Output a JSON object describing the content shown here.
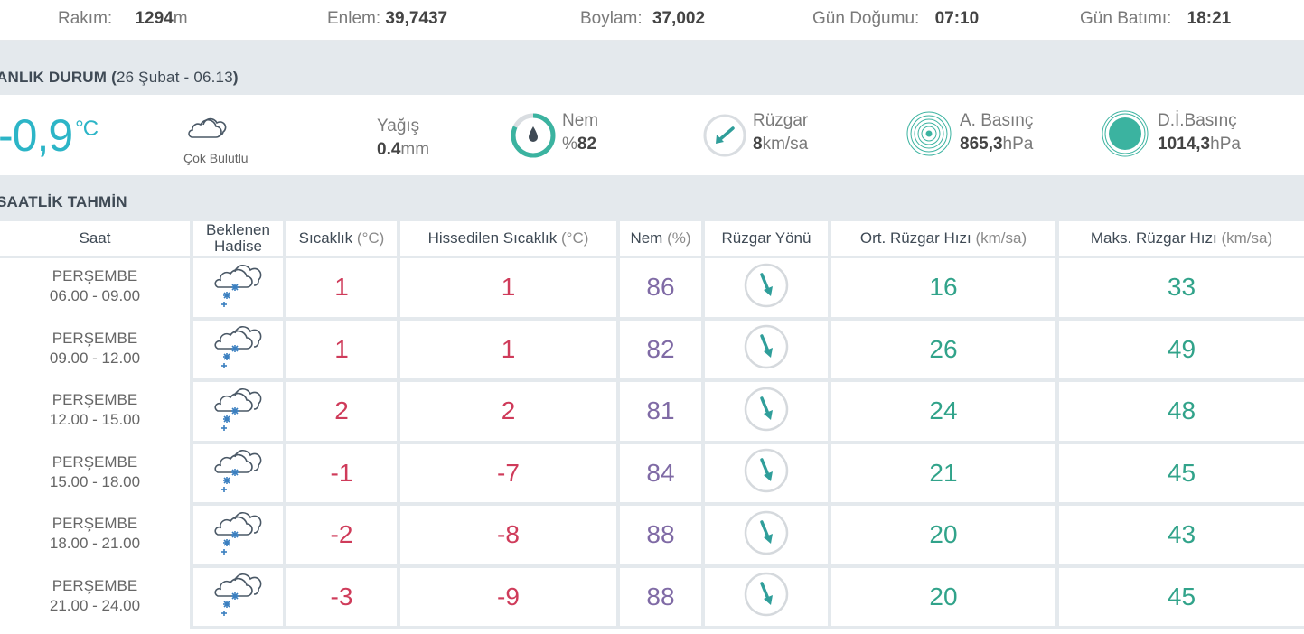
{
  "info_bar": {
    "altitude_label": "Rakım:",
    "altitude_value": "1294",
    "altitude_unit": "m",
    "latitude_label": "Enlem:",
    "latitude_value": "39,7437",
    "longitude_label": "Boylam:",
    "longitude_value": "37,002",
    "sunrise_label": "Gün Doğumu:",
    "sunrise_value": "07:10",
    "sunset_label": "Gün Batımı:",
    "sunset_value": "18:21"
  },
  "current": {
    "section_title": "ANLIK DURUM",
    "open_paren": "(",
    "date": "26 Şubat - 06.13",
    "close_paren": ")",
    "temperature": "-0,9",
    "temperature_unit": "°C",
    "condition": "Çok Bulutlu",
    "rain_label": "Yağış",
    "rain_value": "0.4",
    "rain_unit": "mm",
    "humidity_label": "Nem",
    "humidity_prefix": "%",
    "humidity_value": "82",
    "humidity_fraction": 0.82,
    "wind_label": "Rüzgar",
    "wind_value": "8",
    "wind_unit": "km/sa",
    "pressure_label": "A. Basınç",
    "pressure_value": "865,3",
    "pressure_unit": "hPa",
    "sea_pressure_label": "D.İ.Basınç",
    "sea_pressure_value": "1014,3",
    "sea_pressure_unit": "hPa",
    "accent_color": "#2cb5c7",
    "gauge_color": "#3bb3a0"
  },
  "forecast": {
    "section_title": "SAATLİK TAHMİN",
    "columns": {
      "time": "Saat",
      "event_line1": "Beklenen",
      "event_line2": "Hadise",
      "temp": "Sıcaklık",
      "temp_unit": "(°C)",
      "feels": "Hissedilen Sıcaklık",
      "feels_unit": "(°C)",
      "humidity": "Nem",
      "humidity_unit": "(%)",
      "wind_dir": "Rüzgar Yönü",
      "avg_wind": "Ort. Rüzgar Hızı",
      "avg_wind_unit": "(km/sa)",
      "max_wind": "Maks. Rüzgar Hızı",
      "max_wind_unit": "(km/sa)"
    },
    "event_icon": "cloud-snow-icon",
    "wind_icon": "wind-direction-arrow-icon",
    "rows": [
      {
        "day": "PERŞEMBE",
        "range": "06.00 - 09.00",
        "temp": "1",
        "feels": "1",
        "humidity": "86",
        "avg_wind": "16",
        "max_wind": "33"
      },
      {
        "day": "PERŞEMBE",
        "range": "09.00 - 12.00",
        "temp": "1",
        "feels": "1",
        "humidity": "82",
        "avg_wind": "26",
        "max_wind": "49"
      },
      {
        "day": "PERŞEMBE",
        "range": "12.00 - 15.00",
        "temp": "2",
        "feels": "2",
        "humidity": "81",
        "avg_wind": "24",
        "max_wind": "48"
      },
      {
        "day": "PERŞEMBE",
        "range": "15.00 - 18.00",
        "temp": "-1",
        "feels": "-7",
        "humidity": "84",
        "avg_wind": "21",
        "max_wind": "45"
      },
      {
        "day": "PERŞEMBE",
        "range": "18.00 - 21.00",
        "temp": "-2",
        "feels": "-8",
        "humidity": "88",
        "avg_wind": "20",
        "max_wind": "43"
      },
      {
        "day": "PERŞEMBE",
        "range": "21.00 - 24.00",
        "temp": "-3",
        "feels": "-9",
        "humidity": "88",
        "avg_wind": "20",
        "max_wind": "45"
      }
    ],
    "colors": {
      "temp": "#cf3b5a",
      "humidity": "#7f6aa5",
      "wind": "#31a38a"
    }
  }
}
